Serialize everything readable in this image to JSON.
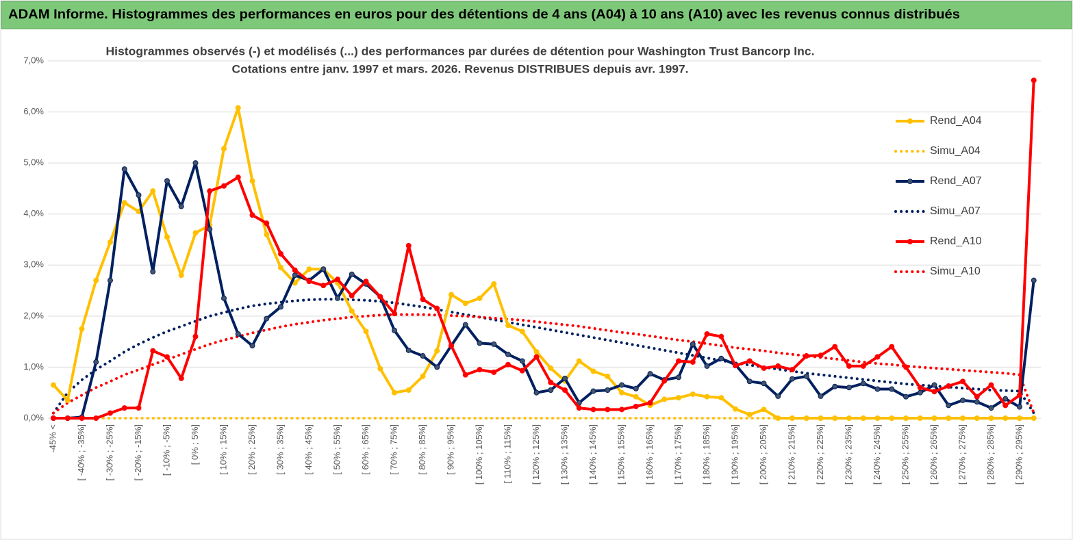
{
  "header": {
    "title": "ADAM Informe. Histogrammes des performances en euros pour des détentions de 4 ans (A04) à 10 ans (A10) avec les revenus connus distribués"
  },
  "chart_data": {
    "type": "line",
    "title": "Histogrammes observés (-) et modélisés (...) des performances par durées de détention pour Washington Trust Bancorp Inc.",
    "subtitle": "Cotations entre janv. 1997 et mars. 2026. Revenus DISTRIBUES depuis avr. 1997.",
    "categories": [
      "-45% <",
      null,
      "[ -40% ; -35%]",
      null,
      "[ -30% ; -25%]",
      null,
      "[ -20% ; -15%]",
      null,
      "[ -10% ; -5%]",
      null,
      "[ 0% ; 5%]",
      null,
      "[ 10% ; 15%]",
      null,
      "[ 20% ; 25%]",
      null,
      "[ 30% ; 35%]",
      null,
      "[ 40% ; 45%]",
      null,
      "[ 50% ; 55%]",
      null,
      "[ 60% ; 65%]",
      null,
      "[ 70% ; 75%]",
      null,
      "[ 80% ; 85%]",
      null,
      "[ 90% ; 95%]",
      null,
      "[ 100% ; 105%]",
      null,
      "[ 110% ; 115%]",
      null,
      "[ 120% ; 125%]",
      null,
      "[ 130% ; 135%]",
      null,
      "[ 140% ; 145%]",
      null,
      "[ 150% ; 155%]",
      null,
      "[ 160% ; 165%]",
      null,
      "[ 170% ; 175%]",
      null,
      "[ 180% ; 185%]",
      null,
      "[ 190% ; 195%]",
      null,
      "[ 200% ; 205%]",
      null,
      "[ 210% ; 215%]",
      null,
      "[ 220% ; 225%]",
      null,
      "[ 230% ; 235%]",
      null,
      "[ 240% ; 245%]",
      null,
      "[ 250% ; 255%]",
      null,
      "[ 260% ; 265%]",
      null,
      "[ 270% ; 275%]",
      null,
      "[ 280% ; 285%]",
      null,
      "[ 290% ; 295%]",
      null
    ],
    "ylim": [
      0,
      7
    ],
    "yticks": [
      {
        "value": 0,
        "label": "0,0%"
      },
      {
        "value": 1,
        "label": "1,0%"
      },
      {
        "value": 2,
        "label": "2,0%"
      },
      {
        "value": 3,
        "label": "3,0%"
      },
      {
        "value": 4,
        "label": "4,0%"
      },
      {
        "value": 5,
        "label": "5,0%"
      },
      {
        "value": 6,
        "label": "6,0%"
      },
      {
        "value": 7,
        "label": "7,0%"
      }
    ],
    "grid": true,
    "legend": "right",
    "series": [
      {
        "name": "Rend_A04",
        "color": "#ffc000",
        "style": "solid",
        "values": [
          0.65,
          0.35,
          1.75,
          2.7,
          3.45,
          4.22,
          4.05,
          4.45,
          3.55,
          2.8,
          3.63,
          3.78,
          5.28,
          6.08,
          4.65,
          3.6,
          2.95,
          2.65,
          2.92,
          2.92,
          2.65,
          2.1,
          1.7,
          0.97,
          0.5,
          0.55,
          0.82,
          1.32,
          2.42,
          2.25,
          2.35,
          2.63,
          1.82,
          1.7,
          1.3,
          0.98,
          0.73,
          1.12,
          0.92,
          0.82,
          0.5,
          0.42,
          0.25,
          0.37,
          0.4,
          0.47,
          0.42,
          0.4,
          0.18,
          0.07,
          0.17,
          0,
          0,
          0,
          0,
          0,
          0,
          0,
          0,
          0,
          0,
          0,
          0,
          0,
          0,
          0,
          0,
          0,
          0,
          0
        ]
      },
      {
        "name": "Simu_A04",
        "color": "#ffc000",
        "style": "dotted",
        "values": [
          0,
          0,
          0,
          0,
          0,
          0,
          0,
          0,
          0,
          0,
          0,
          0,
          0,
          0,
          0,
          0,
          0,
          0,
          0,
          0,
          0,
          0,
          0,
          0,
          0,
          0,
          0,
          0,
          0,
          0,
          0,
          0,
          0,
          0,
          0,
          0,
          0,
          0,
          0,
          0,
          0,
          0,
          0,
          0,
          0,
          0,
          0,
          0,
          0,
          0,
          0,
          0,
          0,
          0,
          0,
          0,
          0,
          0,
          0,
          0,
          0,
          0,
          0,
          0,
          0,
          0,
          0,
          0,
          0,
          0
        ]
      },
      {
        "name": "Rend_A07",
        "color": "#002060",
        "style": "solid",
        "values": [
          0,
          0,
          0.02,
          1.1,
          2.7,
          4.88,
          4.37,
          2.87,
          4.65,
          4.15,
          5.0,
          3.7,
          2.35,
          1.65,
          1.42,
          1.95,
          2.18,
          2.8,
          2.7,
          2.92,
          2.35,
          2.82,
          2.63,
          2.38,
          1.72,
          1.33,
          1.22,
          1.0,
          1.42,
          1.83,
          1.47,
          1.45,
          1.25,
          1.12,
          0.5,
          0.55,
          0.78,
          0.3,
          0.53,
          0.55,
          0.65,
          0.58,
          0.87,
          0.75,
          0.8,
          1.45,
          1.02,
          1.17,
          1.05,
          0.72,
          0.68,
          0.43,
          0.77,
          0.82,
          0.43,
          0.62,
          0.6,
          0.68,
          0.57,
          0.57,
          0.42,
          0.5,
          0.65,
          0.25,
          0.35,
          0.32,
          0.2,
          0.38,
          0.22,
          2.7
        ]
      },
      {
        "name": "Simu_A07",
        "color": "#002060",
        "style": "dotted",
        "values": [
          0.1,
          0.5,
          0.75,
          0.95,
          1.12,
          1.3,
          1.45,
          1.58,
          1.7,
          1.8,
          1.9,
          2.0,
          2.07,
          2.14,
          2.2,
          2.24,
          2.27,
          2.3,
          2.32,
          2.33,
          2.33,
          2.32,
          2.31,
          2.29,
          2.26,
          2.22,
          2.18,
          2.13,
          2.08,
          2.03,
          1.98,
          1.93,
          1.88,
          1.83,
          1.78,
          1.73,
          1.68,
          1.63,
          1.58,
          1.53,
          1.48,
          1.43,
          1.38,
          1.33,
          1.28,
          1.23,
          1.18,
          1.13,
          1.08,
          1.04,
          1.0,
          0.96,
          0.92,
          0.88,
          0.85,
          0.82,
          0.79,
          0.76,
          0.73,
          0.7,
          0.67,
          0.65,
          0.63,
          0.61,
          0.59,
          0.57,
          0.55,
          0.54,
          0.53,
          0.1
        ]
      },
      {
        "name": "Rend_A10",
        "color": "#ff0000",
        "style": "solid",
        "values": [
          0,
          0,
          0,
          0,
          0.1,
          0.2,
          0.2,
          1.32,
          1.2,
          0.78,
          1.6,
          4.45,
          4.55,
          4.72,
          3.98,
          3.82,
          3.22,
          2.9,
          2.68,
          2.6,
          2.72,
          2.4,
          2.68,
          2.38,
          2.05,
          3.38,
          2.33,
          2.15,
          1.42,
          0.85,
          0.95,
          0.9,
          1.05,
          0.93,
          1.2,
          0.7,
          0.55,
          0.2,
          0.17,
          0.17,
          0.17,
          0.23,
          0.3,
          0.73,
          1.12,
          1.1,
          1.65,
          1.6,
          1.03,
          1.12,
          0.98,
          1.02,
          0.95,
          1.22,
          1.23,
          1.4,
          1.02,
          1.02,
          1.2,
          1.4,
          1.0,
          0.6,
          0.52,
          0.63,
          0.72,
          0.42,
          0.65,
          0.25,
          0.45,
          6.62
        ]
      },
      {
        "name": "Simu_A10",
        "color": "#ff0000",
        "style": "dotted",
        "values": [
          0.1,
          0.3,
          0.45,
          0.6,
          0.72,
          0.85,
          0.95,
          1.05,
          1.15,
          1.25,
          1.35,
          1.45,
          1.53,
          1.6,
          1.67,
          1.73,
          1.79,
          1.84,
          1.88,
          1.92,
          1.95,
          1.98,
          2.0,
          2.02,
          2.03,
          2.03,
          2.03,
          2.02,
          2.01,
          2.0,
          1.98,
          1.96,
          1.94,
          1.92,
          1.89,
          1.86,
          1.83,
          1.8,
          1.76,
          1.72,
          1.68,
          1.65,
          1.61,
          1.57,
          1.53,
          1.5,
          1.46,
          1.42,
          1.38,
          1.35,
          1.32,
          1.28,
          1.25,
          1.22,
          1.19,
          1.16,
          1.13,
          1.1,
          1.07,
          1.05,
          1.02,
          1.0,
          0.98,
          0.96,
          0.94,
          0.92,
          0.9,
          0.88,
          0.85,
          0.1
        ]
      }
    ]
  }
}
